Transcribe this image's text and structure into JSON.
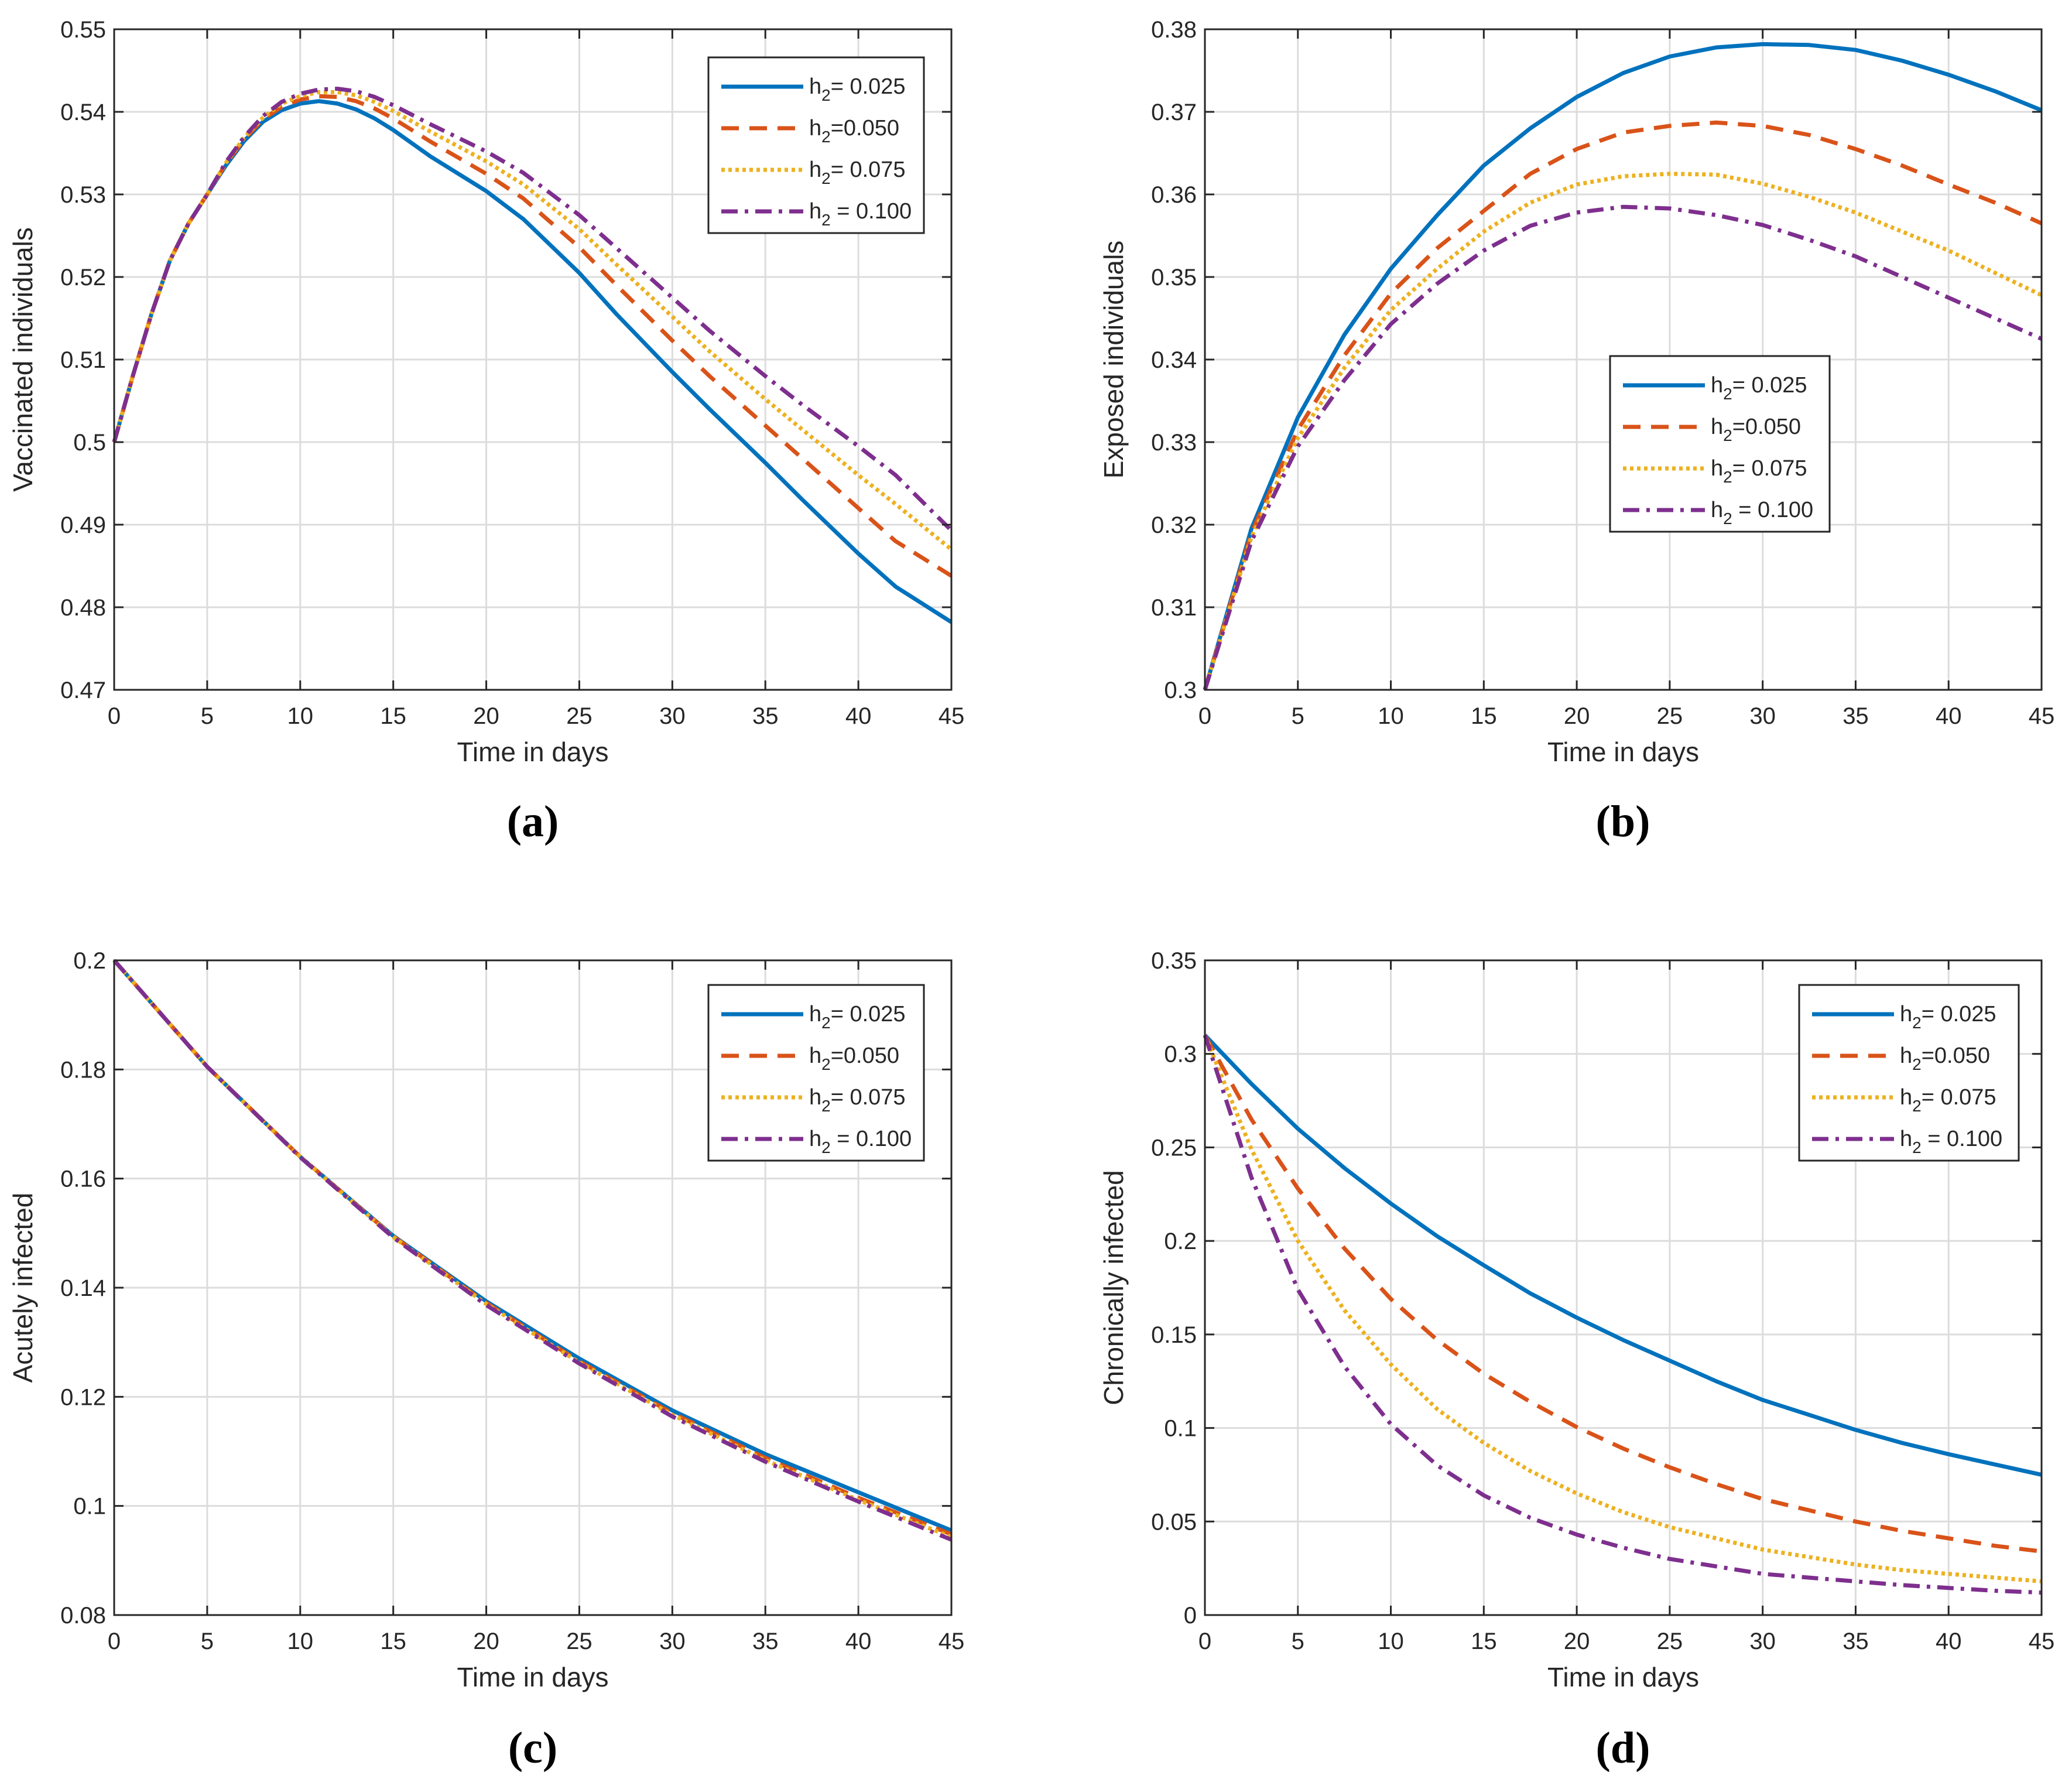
{
  "chart_data": [
    {
      "type": "line",
      "panel_label": "(a)",
      "xlabel": "Time in days",
      "ylabel": "Vaccinated individuals",
      "xlim": [
        0,
        45
      ],
      "ylim": [
        0.47,
        0.55
      ],
      "xticks": [
        0,
        5,
        10,
        15,
        20,
        25,
        30,
        35,
        40,
        45
      ],
      "yticks": [
        0.47,
        0.48,
        0.49,
        0.5,
        0.51,
        0.52,
        0.53,
        0.54,
        0.55
      ],
      "grid": true,
      "legend_position": "top-right",
      "x": [
        0,
        1,
        2,
        3,
        4,
        5,
        6,
        7,
        8,
        9,
        10,
        11,
        12,
        13,
        14,
        15,
        17,
        20,
        22,
        25,
        27,
        30,
        32,
        35,
        37,
        40,
        42,
        45
      ],
      "series": [
        {
          "name": "h2= 0.025",
          "color": "#0072BD",
          "dash": "solid",
          "values": [
            0.5,
            0.508,
            0.5155,
            0.522,
            0.5265,
            0.53,
            0.5335,
            0.5365,
            0.5388,
            0.5402,
            0.541,
            0.5413,
            0.541,
            0.5403,
            0.5392,
            0.5378,
            0.5346,
            0.5304,
            0.527,
            0.5205,
            0.5155,
            0.5085,
            0.504,
            0.4975,
            0.493,
            0.4865,
            0.4825,
            0.4782
          ]
        },
        {
          "name": "h2=0.050",
          "color": "#D95319",
          "dash": "dashed",
          "values": [
            0.5,
            0.508,
            0.5155,
            0.522,
            0.5265,
            0.53,
            0.5337,
            0.5367,
            0.5391,
            0.5406,
            0.5415,
            0.5419,
            0.5418,
            0.5413,
            0.5404,
            0.5392,
            0.5364,
            0.5325,
            0.5295,
            0.5236,
            0.519,
            0.5123,
            0.508,
            0.502,
            0.498,
            0.492,
            0.488,
            0.4838
          ]
        },
        {
          "name": "h2= 0.075",
          "color": "#EDB120",
          "dash": "dotted",
          "values": [
            0.5,
            0.508,
            0.5155,
            0.522,
            0.5265,
            0.53,
            0.5338,
            0.5369,
            0.5393,
            0.541,
            0.5419,
            0.5424,
            0.5424,
            0.542,
            0.5412,
            0.5401,
            0.5376,
            0.534,
            0.5312,
            0.5258,
            0.5215,
            0.5152,
            0.511,
            0.5052,
            0.5015,
            0.496,
            0.4925,
            0.487
          ]
        },
        {
          "name": "h2 = 0.100",
          "color": "#7E2F8E",
          "dash": "dashdot",
          "values": [
            0.5,
            0.508,
            0.5155,
            0.522,
            0.5265,
            0.53,
            0.5339,
            0.537,
            0.5395,
            0.5412,
            0.5422,
            0.5427,
            0.5428,
            0.5425,
            0.5418,
            0.5408,
            0.5385,
            0.5352,
            0.5326,
            0.5275,
            0.5235,
            0.5175,
            0.5135,
            0.508,
            0.5045,
            0.4995,
            0.496,
            0.4893
          ]
        }
      ]
    },
    {
      "type": "line",
      "panel_label": "(b)",
      "xlabel": "Time in days",
      "ylabel": "Exposed individuals",
      "xlim": [
        0,
        45
      ],
      "ylim": [
        0.3,
        0.38
      ],
      "xticks": [
        0,
        5,
        10,
        15,
        20,
        25,
        30,
        35,
        40,
        45
      ],
      "yticks": [
        0.3,
        0.31,
        0.32,
        0.33,
        0.34,
        0.35,
        0.36,
        0.37,
        0.38
      ],
      "grid": true,
      "legend_position": "center",
      "x": [
        0,
        2.5,
        5,
        7.5,
        10,
        12.5,
        15,
        17.5,
        20,
        22.5,
        25,
        27.5,
        30,
        32.5,
        35,
        37.5,
        40,
        42.5,
        45
      ],
      "series": [
        {
          "name": "h2= 0.025",
          "color": "#0072BD",
          "dash": "solid",
          "values": [
            0.3,
            0.3195,
            0.333,
            0.343,
            0.351,
            0.3575,
            0.3635,
            0.368,
            0.3718,
            0.3747,
            0.3767,
            0.3778,
            0.3782,
            0.3781,
            0.3775,
            0.3762,
            0.3745,
            0.3725,
            0.3702
          ]
        },
        {
          "name": "h2=0.050",
          "color": "#D95319",
          "dash": "dashed",
          "values": [
            0.3,
            0.319,
            0.3315,
            0.3405,
            0.348,
            0.3535,
            0.358,
            0.3625,
            0.3655,
            0.3675,
            0.3683,
            0.3687,
            0.3683,
            0.3672,
            0.3655,
            0.3635,
            0.3612,
            0.359,
            0.3565
          ]
        },
        {
          "name": "h2= 0.075",
          "color": "#EDB120",
          "dash": "dotted",
          "values": [
            0.3,
            0.3185,
            0.3305,
            0.339,
            0.346,
            0.351,
            0.3555,
            0.359,
            0.3612,
            0.3622,
            0.3625,
            0.3624,
            0.3613,
            0.3597,
            0.3578,
            0.3555,
            0.3532,
            0.3505,
            0.3478
          ]
        },
        {
          "name": "h2 = 0.100",
          "color": "#7E2F8E",
          "dash": "dashdot",
          "values": [
            0.3,
            0.318,
            0.3295,
            0.3375,
            0.3443,
            0.3492,
            0.3532,
            0.3562,
            0.3578,
            0.3585,
            0.3583,
            0.3575,
            0.3563,
            0.3545,
            0.3525,
            0.35,
            0.3475,
            0.345,
            0.3425
          ]
        }
      ],
      "legend_entries_note": ""
    },
    {
      "type": "line",
      "panel_label": "(c)",
      "xlabel": "Time in days",
      "ylabel": "Acutely infected",
      "xlim": [
        0,
        45
      ],
      "ylim": [
        0.08,
        0.2
      ],
      "xticks": [
        0,
        5,
        10,
        15,
        20,
        25,
        30,
        35,
        40,
        45
      ],
      "yticks": [
        0.08,
        0.1,
        0.12,
        0.14,
        0.16,
        0.18,
        0.2
      ],
      "grid": true,
      "legend_position": "top-right",
      "x": [
        0,
        5,
        10,
        15,
        20,
        25,
        30,
        35,
        40,
        45
      ],
      "series": [
        {
          "name": "h2= 0.025",
          "color": "#0072BD",
          "dash": "solid",
          "values": [
            0.2,
            0.1805,
            0.164,
            0.1495,
            0.1375,
            0.127,
            0.1175,
            0.1095,
            0.1025,
            0.0955
          ]
        },
        {
          "name": "h2=0.050",
          "color": "#D95319",
          "dash": "dashed",
          "values": [
            0.2,
            0.1805,
            0.164,
            0.1494,
            0.1372,
            0.1265,
            0.117,
            0.1088,
            0.1015,
            0.0948
          ]
        },
        {
          "name": "h2= 0.075",
          "color": "#EDB120",
          "dash": "dotted",
          "values": [
            0.2,
            0.1805,
            0.164,
            0.1493,
            0.137,
            0.1263,
            0.1167,
            0.1084,
            0.1011,
            0.0943
          ]
        },
        {
          "name": "h2 = 0.100",
          "color": "#7E2F8E",
          "dash": "dashdot",
          "values": [
            0.2,
            0.1805,
            0.1639,
            0.1492,
            0.1368,
            0.1261,
            0.1164,
            0.1081,
            0.1008,
            0.0938
          ]
        }
      ]
    },
    {
      "type": "line",
      "panel_label": "(d)",
      "xlabel": "Time in days",
      "ylabel": "Chronically infected",
      "xlim": [
        0,
        45
      ],
      "ylim": [
        0,
        0.35
      ],
      "xticks": [
        0,
        5,
        10,
        15,
        20,
        25,
        30,
        35,
        40,
        45
      ],
      "yticks": [
        0,
        0.05,
        0.1,
        0.15,
        0.2,
        0.25,
        0.3,
        0.35
      ],
      "grid": true,
      "legend_position": "top-right",
      "x": [
        0,
        2.5,
        5,
        7.5,
        10,
        12.5,
        15,
        17.5,
        20,
        22.5,
        25,
        27.5,
        30,
        32.5,
        35,
        37.5,
        40,
        42.5,
        45
      ],
      "series": [
        {
          "name": "h2= 0.025",
          "color": "#0072BD",
          "dash": "solid",
          "values": [
            0.31,
            0.284,
            0.26,
            0.239,
            0.22,
            0.2025,
            0.187,
            0.172,
            0.159,
            0.147,
            0.136,
            0.125,
            0.115,
            0.107,
            0.099,
            0.092,
            0.086,
            0.0805,
            0.075
          ]
        },
        {
          "name": "h2=0.050",
          "color": "#D95319",
          "dash": "dashed",
          "values": [
            0.31,
            0.265,
            0.228,
            0.196,
            0.169,
            0.147,
            0.129,
            0.114,
            0.1005,
            0.089,
            0.079,
            0.07,
            0.062,
            0.056,
            0.05,
            0.045,
            0.041,
            0.037,
            0.034
          ]
        },
        {
          "name": "h2= 0.075",
          "color": "#EDB120",
          "dash": "dotted",
          "values": [
            0.31,
            0.249,
            0.2,
            0.163,
            0.134,
            0.11,
            0.092,
            0.077,
            0.065,
            0.055,
            0.047,
            0.041,
            0.035,
            0.031,
            0.027,
            0.024,
            0.022,
            0.02,
            0.018
          ]
        },
        {
          "name": "h2 = 0.100",
          "color": "#7E2F8E",
          "dash": "dashdot",
          "values": [
            0.31,
            0.234,
            0.174,
            0.133,
            0.102,
            0.08,
            0.064,
            0.052,
            0.043,
            0.036,
            0.03,
            0.026,
            0.022,
            0.02,
            0.018,
            0.016,
            0.0145,
            0.013,
            0.012
          ]
        }
      ]
    }
  ],
  "legend_labels": {
    "s1": {
      "base": "h",
      "sub": "2",
      "tail": "= 0.025"
    },
    "s2": {
      "base": "h",
      "sub": "2",
      "tail": "=0.050"
    },
    "s3": {
      "base": "h",
      "sub": "2",
      "tail": "= 0.075"
    },
    "s4": {
      "base": "h",
      "sub": "2",
      "tail": " = 0.100"
    }
  }
}
